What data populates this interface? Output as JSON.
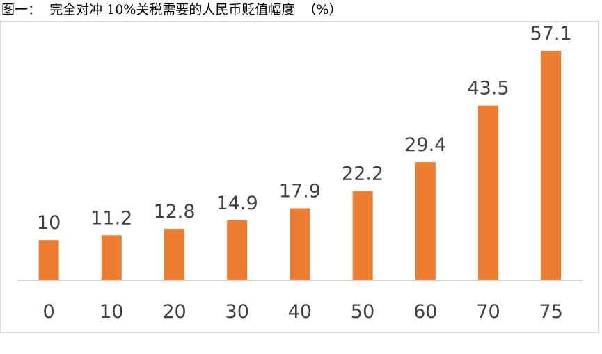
{
  "title": "图一：  完全对冲 10%关税需要的人民币贬值幅度  （%）",
  "chart_data": {
    "type": "bar",
    "title": "图一：  完全对冲 10%关税需要的人民币贬值幅度  （%）",
    "categories": [
      "0",
      "10",
      "20",
      "30",
      "40",
      "50",
      "60",
      "70",
      "75"
    ],
    "values": [
      10,
      11.2,
      12.8,
      14.9,
      17.9,
      22.2,
      29.4,
      43.5,
      57.1
    ],
    "value_labels": [
      "10",
      "11.2",
      "12.8",
      "14.9",
      "17.9",
      "22.2",
      "29.4",
      "43.5",
      "57.1"
    ],
    "xlabel": "",
    "ylabel": "",
    "ylim": [
      0,
      60
    ],
    "grid": false,
    "legend": "none",
    "bar_color": "#ED7D31",
    "label_color": "#404040",
    "axis_color": "#BFBFBF"
  }
}
